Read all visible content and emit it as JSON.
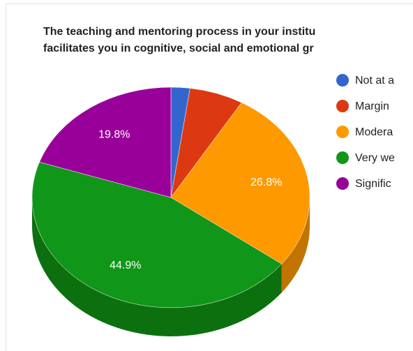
{
  "chart_data": {
    "type": "pie",
    "title_lines": [
      "The teaching and mentoring process in your institu",
      "facilitates you in cognitive, social and emotional gr"
    ],
    "categories": [
      "Not at a",
      "Margin",
      "Modera",
      "Very we",
      "Signific"
    ],
    "values": [
      2.2,
      6.3,
      26.8,
      44.9,
      19.8
    ],
    "value_labels": [
      null,
      null,
      "26.8%",
      "44.9%",
      "19.8%"
    ],
    "colors": [
      "#3366cc",
      "#dc3912",
      "#ff9900",
      "#109618",
      "#990099"
    ],
    "side_colors": [
      "#264d99",
      "#a52b0e",
      "#c27400",
      "#0c700f",
      "#730073"
    ],
    "three_d": true
  }
}
